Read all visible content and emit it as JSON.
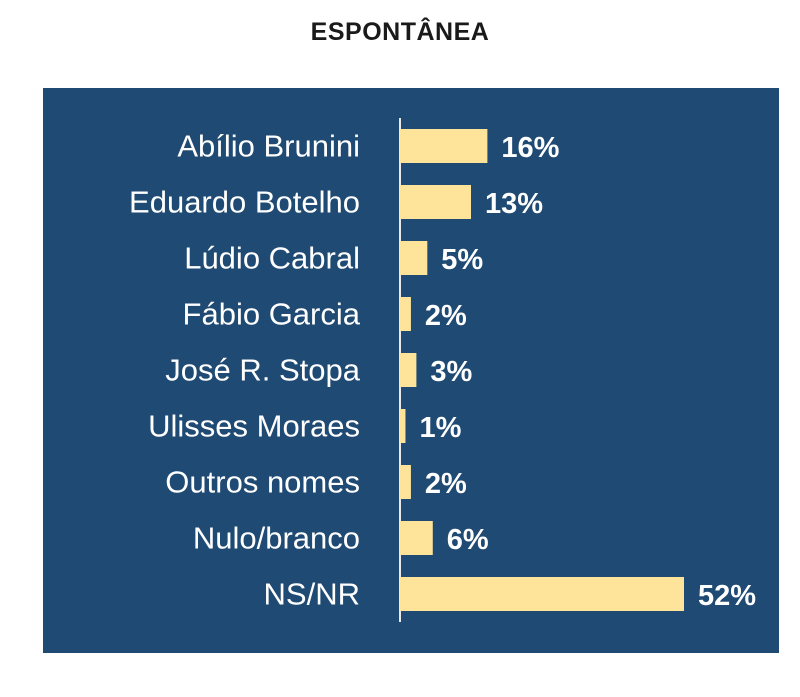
{
  "chart_data": {
    "type": "bar",
    "orientation": "horizontal",
    "title": "ESPONTÂNEA",
    "categories": [
      "Abílio Brunini",
      "Eduardo Botelho",
      "Lúdio Cabral",
      "Fábio Garcia",
      "José R. Stopa",
      "Ulisses Moraes",
      "Outros nomes",
      "Nulo/branco",
      "NS/NR"
    ],
    "values": [
      16,
      13,
      5,
      2,
      3,
      1,
      2,
      6,
      52
    ],
    "value_labels": [
      "16%",
      "13%",
      "5%",
      "2%",
      "3%",
      "1%",
      "2%",
      "6%",
      "52%"
    ],
    "unit": "%",
    "xlim": [
      0,
      52
    ],
    "grid": false,
    "bar_color": "#fde49a",
    "background_color": "#1f4a73",
    "axis_color": "#e8e8e8"
  }
}
